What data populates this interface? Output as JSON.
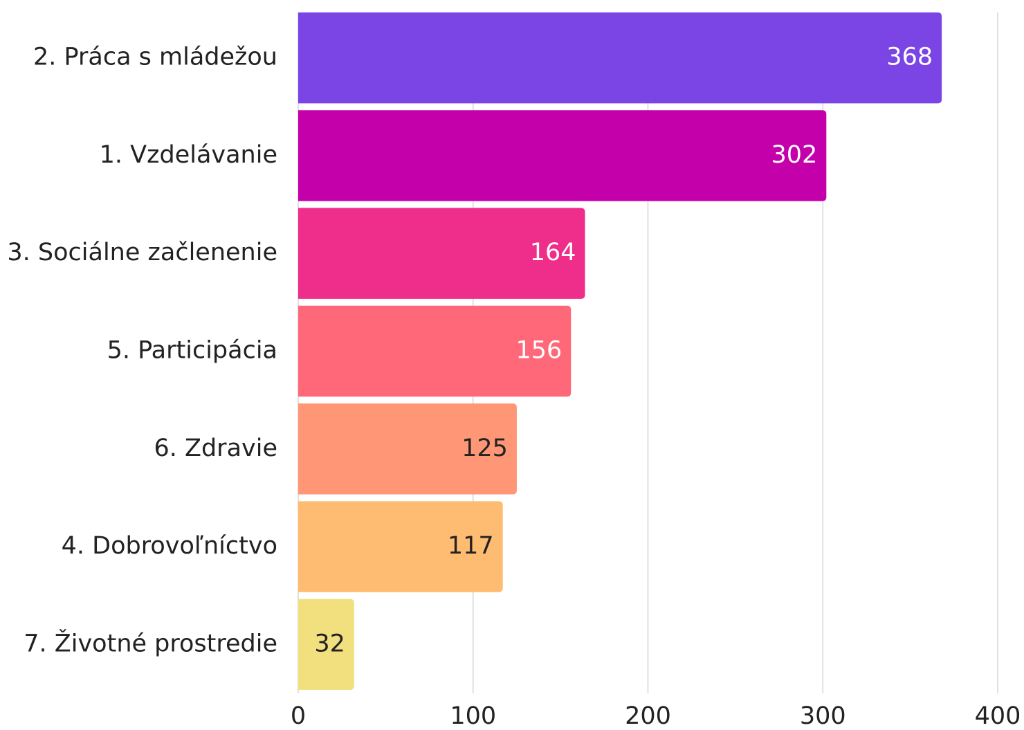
{
  "chart_data": {
    "type": "bar",
    "orientation": "horizontal",
    "categories": [
      "2. Práca s mládežou",
      "1. Vzdelávanie",
      "3. Sociálne začlenenie",
      "5. Participácia",
      "6. Zdravie",
      "4. Dobrovoľníctvo",
      "7. Životné prostredie"
    ],
    "values": [
      368,
      302,
      164,
      156,
      125,
      117,
      32
    ],
    "colors": [
      "#7b45e6",
      "#c400aa",
      "#ef2d8a",
      "#ff6878",
      "#ff9776",
      "#febc72",
      "#f2e07f"
    ],
    "value_label_colors": [
      "#ffffff",
      "#ffffff",
      "#ffffff",
      "#ffffff",
      "#222222",
      "#222222",
      "#222222"
    ],
    "xlim": [
      0,
      400
    ],
    "xticks": [
      0,
      100,
      200,
      300,
      400
    ],
    "grid": true
  }
}
